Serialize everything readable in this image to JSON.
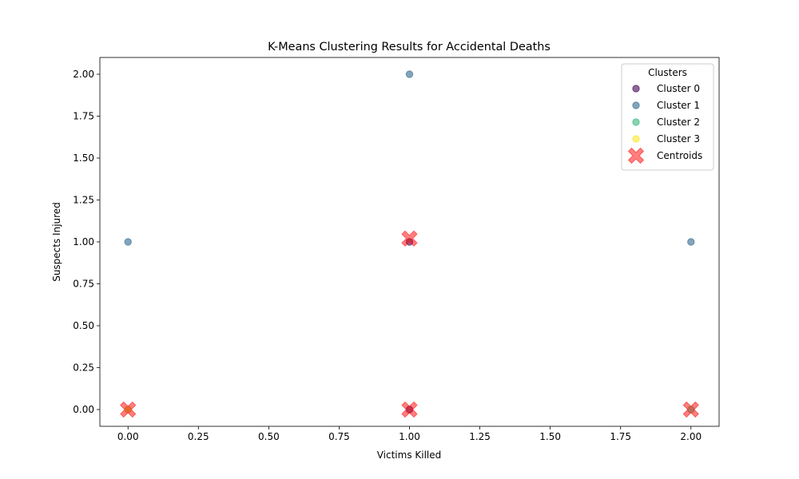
{
  "chart_data": {
    "type": "scatter",
    "title": "K-Means Clustering Results for Accidental Deaths",
    "xlabel": "Victims Killed",
    "ylabel": "Suspects Injured",
    "xlim": [
      -0.1,
      2.1
    ],
    "ylim": [
      -0.1,
      2.1
    ],
    "xticks": [
      0.0,
      0.25,
      0.5,
      0.75,
      1.0,
      1.25,
      1.5,
      1.75,
      2.0
    ],
    "xtick_labels": [
      "0.00",
      "0.25",
      "0.50",
      "0.75",
      "1.00",
      "1.25",
      "1.50",
      "1.75",
      "2.00"
    ],
    "yticks": [
      0.0,
      0.25,
      0.5,
      0.75,
      1.0,
      1.25,
      1.5,
      1.75,
      2.0
    ],
    "ytick_labels": [
      "0.00",
      "0.25",
      "0.50",
      "0.75",
      "1.00",
      "1.25",
      "1.50",
      "1.75",
      "2.00"
    ],
    "grid": false,
    "legend": {
      "title": "Clusters",
      "placement": "top-right"
    },
    "series": [
      {
        "name": "Cluster 0",
        "color": "#440154",
        "alpha": 0.6,
        "marker": "circle",
        "points": [
          [
            1,
            0
          ],
          [
            1,
            1
          ]
        ]
      },
      {
        "name": "Cluster 1",
        "color": "#31688e",
        "alpha": 0.6,
        "marker": "circle",
        "points": [
          [
            0,
            1
          ],
          [
            1,
            2
          ],
          [
            2,
            1
          ],
          [
            0,
            0
          ]
        ]
      },
      {
        "name": "Cluster 2",
        "color": "#35b779",
        "alpha": 0.6,
        "marker": "circle",
        "points": [
          [
            2,
            0
          ]
        ]
      },
      {
        "name": "Cluster 3",
        "color": "#fde725",
        "alpha": 0.6,
        "marker": "circle",
        "points": [
          [
            0,
            0
          ]
        ]
      },
      {
        "name": "Centroids",
        "color": "#ff0000",
        "alpha": 0.5,
        "marker": "X",
        "points": [
          [
            0,
            0
          ],
          [
            1,
            0
          ],
          [
            1,
            1.02
          ],
          [
            2,
            0
          ]
        ]
      }
    ]
  }
}
